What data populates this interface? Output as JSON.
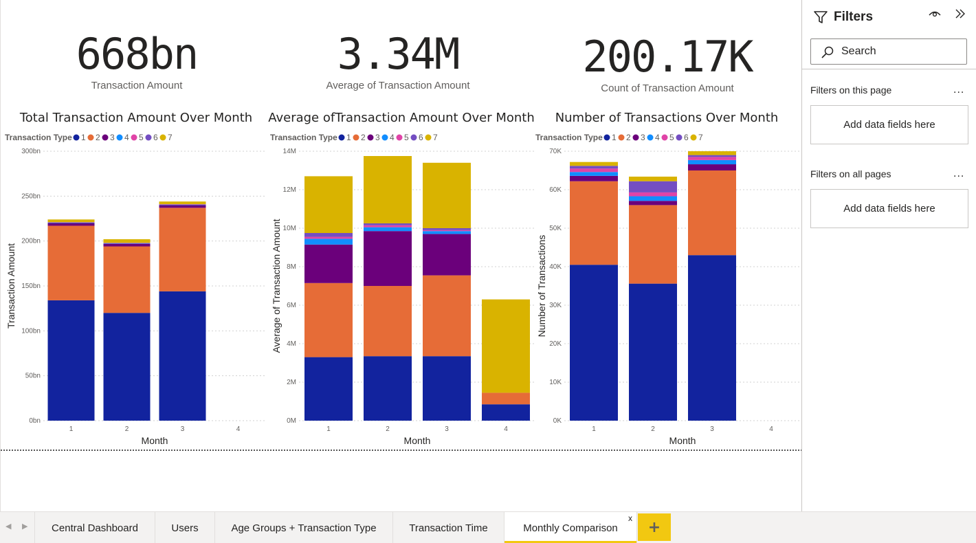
{
  "kpis": [
    {
      "value": "668bn",
      "label": "Transaction Amount"
    },
    {
      "value": "3.34M",
      "label": "Average of Transaction Amount"
    },
    {
      "value": "200.17K",
      "label": "Count of Transaction Amount"
    }
  ],
  "legend": {
    "title": "Transaction Type",
    "items": [
      "1",
      "2",
      "3",
      "4",
      "5",
      "6",
      "7"
    ],
    "colors": [
      "#12239e",
      "#e66c37",
      "#6b007b",
      "#118dff",
      "#e044a7",
      "#744ec2",
      "#d9b300"
    ]
  },
  "chart_data": [
    {
      "type": "bar",
      "stacked": true,
      "title": "Total Transaction Amount Over Month",
      "xlabel": "Month",
      "ylabel": "Transaction Amount",
      "categories": [
        "1",
        "2",
        "3",
        "4"
      ],
      "ylim": [
        0,
        300
      ],
      "y_ticks": [
        "0bn",
        "50bn",
        "100bn",
        "150bn",
        "200bn",
        "250bn",
        "300bn"
      ],
      "grid": true,
      "legend_position": "top-left",
      "series": [
        {
          "name": "1",
          "values": [
            134,
            120,
            144,
            0
          ]
        },
        {
          "name": "2",
          "values": [
            83,
            74,
            93,
            0
          ]
        },
        {
          "name": "3",
          "values": [
            3,
            3,
            3,
            0
          ]
        },
        {
          "name": "4",
          "values": [
            0.4,
            0.4,
            0.4,
            0
          ]
        },
        {
          "name": "5",
          "values": [
            0.3,
            0.3,
            0.3,
            0
          ]
        },
        {
          "name": "6",
          "values": [
            0.3,
            0.3,
            0.3,
            0
          ]
        },
        {
          "name": "7",
          "values": [
            3,
            4,
            3,
            0
          ]
        }
      ]
    },
    {
      "type": "bar",
      "stacked": true,
      "title": "Average ofTransaction Amount Over Month",
      "xlabel": "Month",
      "ylabel": "Average of Transaction Amount",
      "categories": [
        "1",
        "2",
        "3",
        "4"
      ],
      "ylim": [
        0,
        14
      ],
      "y_ticks": [
        "0M",
        "2M",
        "4M",
        "6M",
        "8M",
        "10M",
        "12M",
        "14M"
      ],
      "grid": true,
      "legend_position": "top-left",
      "series": [
        {
          "name": "1",
          "values": [
            3.3,
            3.35,
            3.35,
            0.85
          ]
        },
        {
          "name": "2",
          "values": [
            3.85,
            3.65,
            4.2,
            0.6
          ]
        },
        {
          "name": "3",
          "values": [
            2.0,
            2.85,
            2.15,
            0
          ]
        },
        {
          "name": "4",
          "values": [
            0.3,
            0.2,
            0.15,
            0
          ]
        },
        {
          "name": "5",
          "values": [
            0.1,
            0.1,
            0.05,
            0
          ]
        },
        {
          "name": "6",
          "values": [
            0.2,
            0.1,
            0.1,
            0
          ]
        },
        {
          "name": "7",
          "values": [
            2.95,
            3.5,
            3.4,
            4.85
          ]
        }
      ]
    },
    {
      "type": "bar",
      "stacked": true,
      "title": "Number of Transactions Over Month",
      "xlabel": "Month",
      "ylabel": "Number of Transactions",
      "categories": [
        "1",
        "2",
        "3",
        "4"
      ],
      "ylim": [
        0,
        70
      ],
      "y_ticks": [
        "0K",
        "10K",
        "20K",
        "30K",
        "40K",
        "50K",
        "60K",
        "70K"
      ],
      "grid": true,
      "legend_position": "top-left",
      "series": [
        {
          "name": "1",
          "values": [
            40.5,
            35.6,
            43.0,
            0
          ]
        },
        {
          "name": "2",
          "values": [
            21.7,
            20.4,
            22.0,
            0
          ]
        },
        {
          "name": "3",
          "values": [
            1.4,
            1.1,
            1.6,
            0
          ]
        },
        {
          "name": "4",
          "values": [
            1.0,
            1.2,
            1.1,
            0
          ]
        },
        {
          "name": "5",
          "values": [
            0.9,
            1.0,
            0.8,
            0
          ]
        },
        {
          "name": "6",
          "values": [
            0.7,
            2.9,
            0.5,
            0
          ]
        },
        {
          "name": "7",
          "values": [
            1.0,
            1.2,
            1.0,
            0
          ]
        }
      ]
    }
  ],
  "filters": {
    "title": "Filters",
    "search_placeholder": "Search",
    "page_section": "Filters on this page",
    "all_section": "Filters on all pages",
    "more": "...",
    "drop_text": "Add data fields here"
  },
  "tabs": {
    "items": [
      "Central Dashboard",
      "Users",
      "Age Groups + Transaction Type",
      "Transaction Time",
      "Monthly Comparison"
    ],
    "active_index": 4,
    "close": "x",
    "add": "+"
  }
}
